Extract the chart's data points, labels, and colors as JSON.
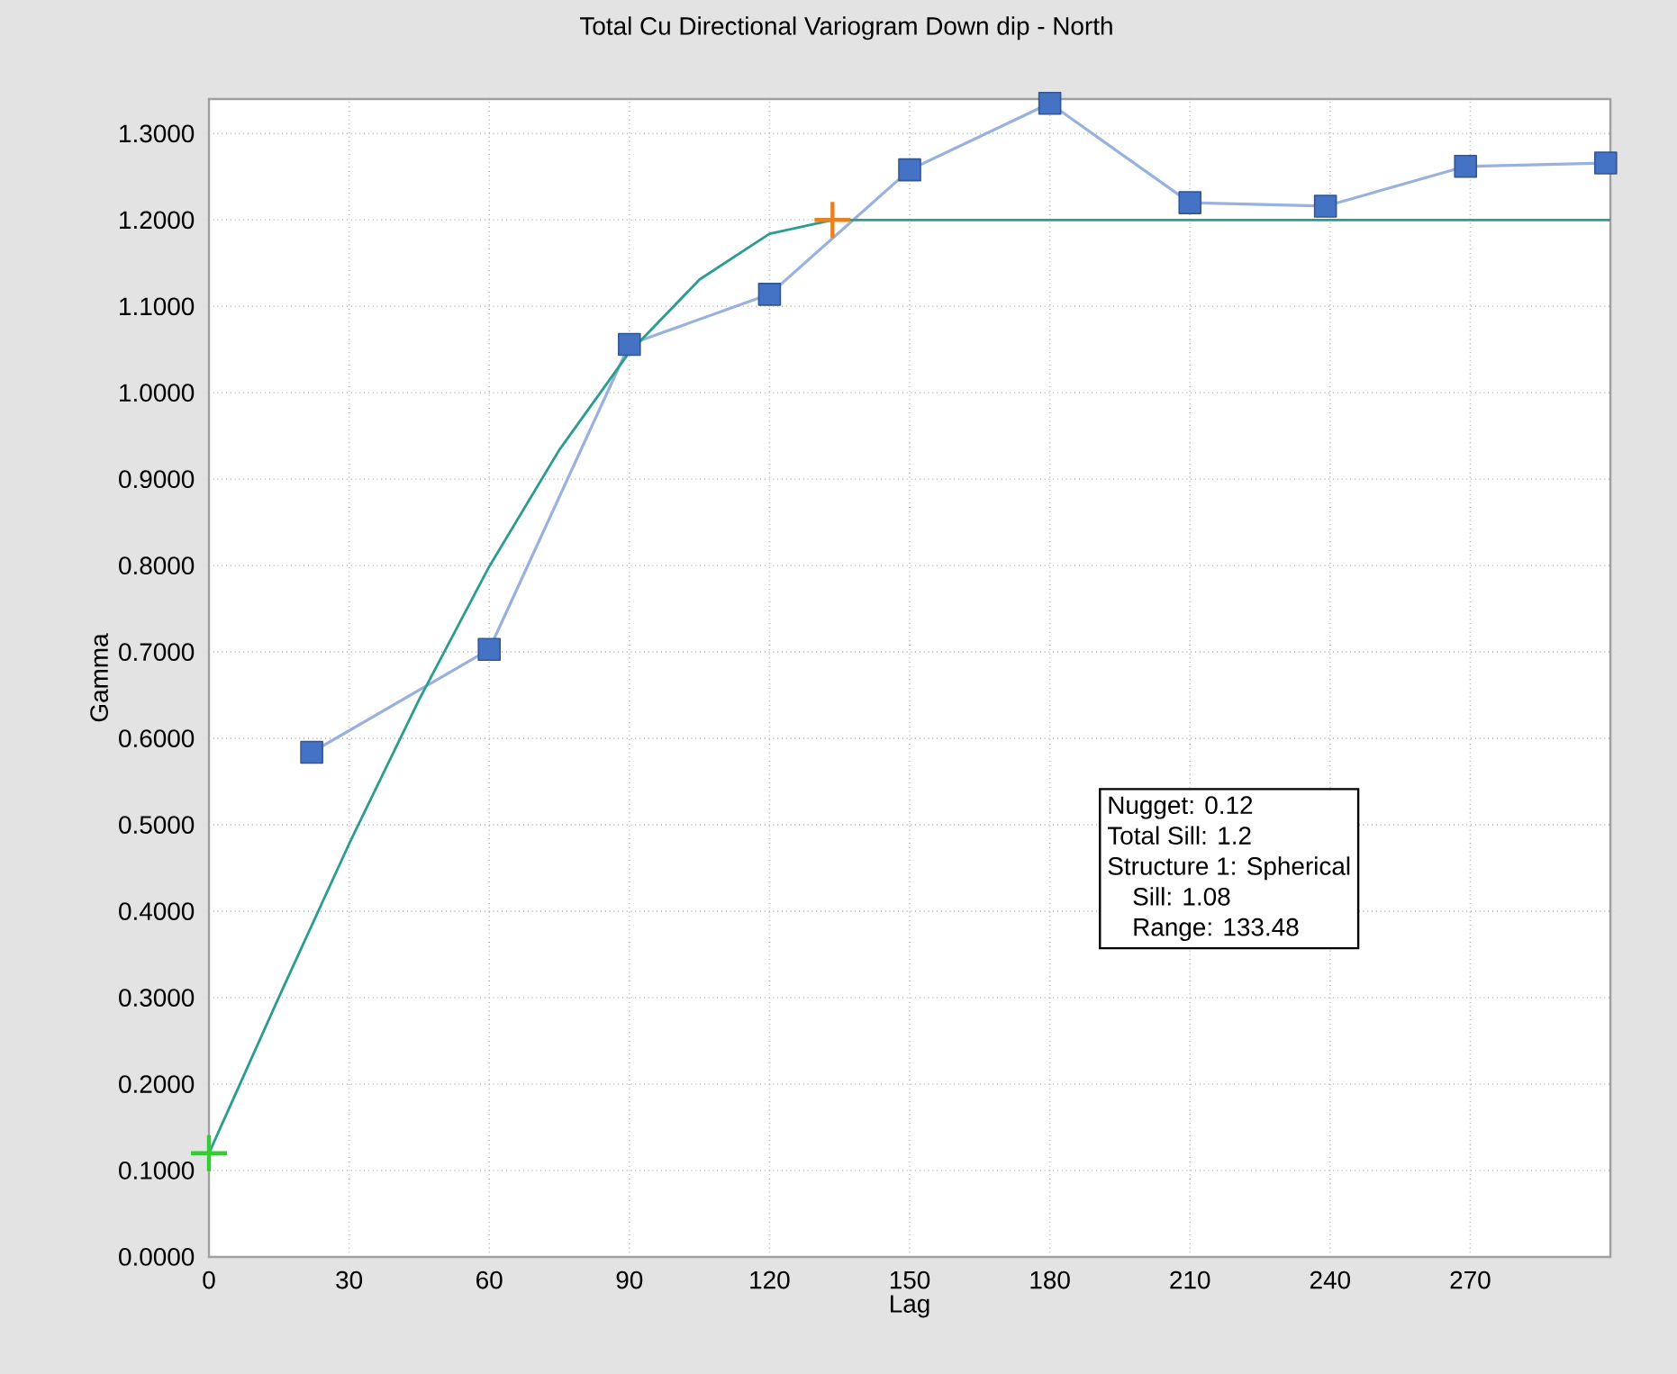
{
  "chart_data": {
    "type": "line",
    "title": "Total Cu Directional Variogram Down dip - North",
    "xlabel": "Lag",
    "ylabel": "Gamma",
    "xlim": [
      0,
      300
    ],
    "ylim": [
      0,
      1.34
    ],
    "xticks": [
      0,
      30,
      60,
      90,
      120,
      150,
      180,
      210,
      240,
      270
    ],
    "yticks": [
      {
        "value": 0,
        "label": "0.0000"
      },
      {
        "value": 0.1,
        "label": "0.1000"
      },
      {
        "value": 0.2,
        "label": "0.2000"
      },
      {
        "value": 0.3,
        "label": "0.3000"
      },
      {
        "value": 0.4,
        "label": "0.4000"
      },
      {
        "value": 0.5,
        "label": "0.5000"
      },
      {
        "value": 0.6,
        "label": "0.6000"
      },
      {
        "value": 0.7,
        "label": "0.7000"
      },
      {
        "value": 0.8,
        "label": "0.8000"
      },
      {
        "value": 0.9,
        "label": "0.9000"
      },
      {
        "value": 1.0,
        "label": "1.0000"
      },
      {
        "value": 1.1,
        "label": "1.1000"
      },
      {
        "value": 1.2,
        "label": "1.2000"
      },
      {
        "value": 1.3,
        "label": "1.3000"
      }
    ],
    "grid": true,
    "series": [
      {
        "color": "#4472c4",
        "marker": "square",
        "x": [
          22,
          60,
          90,
          120,
          150,
          180,
          210,
          239,
          269,
          299
        ],
        "values": [
          0.584,
          0.703,
          1.056,
          1.114,
          1.258,
          1.335,
          1.22,
          1.216,
          1.262,
          1.266
        ]
      },
      {
        "color": "#2a9d8f",
        "marker": "none",
        "x": [
          0,
          15,
          30,
          45,
          60,
          75,
          90,
          105,
          120,
          133.48,
          300
        ],
        "values": [
          0.12,
          0.301,
          0.478,
          0.645,
          0.799,
          0.934,
          1.047,
          1.131,
          1.184,
          1.2,
          1.2
        ]
      },
      {
        "type": "scatter",
        "color": "#33cc33",
        "marker": "cross",
        "x": [
          0
        ],
        "values": [
          0.12
        ]
      },
      {
        "type": "scatter",
        "color": "#e8821e",
        "marker": "cross",
        "x": [
          133.48
        ],
        "values": [
          1.2
        ]
      }
    ],
    "annotations": [
      "Nugget: 0.12",
      "Total Sill: 1.2",
      "Structure 1: Spherical",
      "Sill:  1.08",
      "Range: 133.48"
    ]
  }
}
